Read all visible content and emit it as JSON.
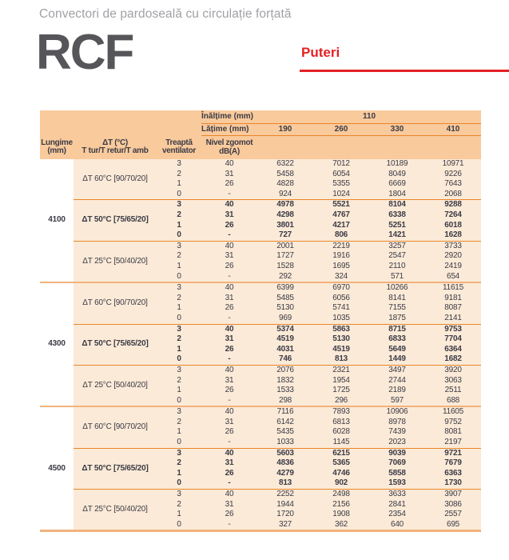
{
  "page": {
    "subtitle": "Convectori de pardoseală cu circulație forțată",
    "product_code": "RCF",
    "section_title": "Puteri"
  },
  "colors": {
    "accent_red": "#e32126",
    "header_bg": "#f9ca9c",
    "body_bg": "#fbead7",
    "strong_line": "#e8862a",
    "soft_line": "#f2b27c",
    "text_dark": "#3b3b46",
    "subtitle_gray": "#a0a1a5",
    "logo_gray": "#56565a"
  },
  "table": {
    "header": {
      "inaltime_label": "Înălțime (mm)",
      "inaltime_value": "110",
      "latime_label": "Lățime (mm)",
      "widths": [
        "190",
        "260",
        "330",
        "410"
      ],
      "col_lungime_l1": "Lungime",
      "col_lungime_l2": "(mm)",
      "col_dt_l1": "ΔT (°C)",
      "col_dt_l2": "T tur/T retur/T amb",
      "col_treapta_l1": "Treaptă",
      "col_treapta_l2": "ventilator",
      "col_nivel_l1": "Nivel zgomot",
      "col_nivel_l2": "dB(A)"
    },
    "groups": [
      {
        "lungime": "4100",
        "subgroups": [
          {
            "dt_label": "ΔT 60°C [90/70/20]",
            "bold": false,
            "rows": [
              {
                "treapta": "3",
                "db": "40",
                "values": [
                  "6322",
                  "7012",
                  "10189",
                  "10971"
                ]
              },
              {
                "treapta": "2",
                "db": "31",
                "values": [
                  "5458",
                  "6054",
                  "8049",
                  "9226"
                ]
              },
              {
                "treapta": "1",
                "db": "26",
                "values": [
                  "4828",
                  "5355",
                  "6669",
                  "7643"
                ]
              },
              {
                "treapta": "0",
                "db": "-",
                "values": [
                  "924",
                  "1024",
                  "1804",
                  "2068"
                ]
              }
            ]
          },
          {
            "dt_label": "ΔT 50°C [75/65/20]",
            "bold": true,
            "rows": [
              {
                "treapta": "3",
                "db": "40",
                "values": [
                  "4978",
                  "5521",
                  "8104",
                  "9288"
                ]
              },
              {
                "treapta": "2",
                "db": "31",
                "values": [
                  "4298",
                  "4767",
                  "6338",
                  "7264"
                ]
              },
              {
                "treapta": "1",
                "db": "26",
                "values": [
                  "3801",
                  "4217",
                  "5251",
                  "6018"
                ]
              },
              {
                "treapta": "0",
                "db": "-",
                "values": [
                  "727",
                  "806",
                  "1421",
                  "1628"
                ]
              }
            ]
          },
          {
            "dt_label": "ΔT 25°C [50/40/20]",
            "bold": false,
            "rows": [
              {
                "treapta": "3",
                "db": "40",
                "values": [
                  "2001",
                  "2219",
                  "3257",
                  "3733"
                ]
              },
              {
                "treapta": "2",
                "db": "31",
                "values": [
                  "1727",
                  "1916",
                  "2547",
                  "2920"
                ]
              },
              {
                "treapta": "1",
                "db": "26",
                "values": [
                  "1528",
                  "1695",
                  "2110",
                  "2419"
                ]
              },
              {
                "treapta": "0",
                "db": "-",
                "values": [
                  "292",
                  "324",
                  "571",
                  "654"
                ]
              }
            ]
          }
        ]
      },
      {
        "lungime": "4300",
        "subgroups": [
          {
            "dt_label": "ΔT 60°C [90/70/20]",
            "bold": false,
            "rows": [
              {
                "treapta": "3",
                "db": "40",
                "values": [
                  "6399",
                  "6970",
                  "10266",
                  "11615"
                ]
              },
              {
                "treapta": "2",
                "db": "31",
                "values": [
                  "5485",
                  "6056",
                  "8141",
                  "9181"
                ]
              },
              {
                "treapta": "1",
                "db": "26",
                "values": [
                  "5130",
                  "5741",
                  "7155",
                  "8087"
                ]
              },
              {
                "treapta": "0",
                "db": "-",
                "values": [
                  "969",
                  "1035",
                  "1875",
                  "2141"
                ]
              }
            ]
          },
          {
            "dt_label": "ΔT 50°C [75/65/20]",
            "bold": true,
            "rows": [
              {
                "treapta": "3",
                "db": "40",
                "values": [
                  "5374",
                  "5863",
                  "8715",
                  "9753"
                ]
              },
              {
                "treapta": "2",
                "db": "31",
                "values": [
                  "4519",
                  "5130",
                  "6833",
                  "7704"
                ]
              },
              {
                "treapta": "1",
                "db": "26",
                "values": [
                  "4031",
                  "4519",
                  "5649",
                  "6364"
                ]
              },
              {
                "treapta": "0",
                "db": "-",
                "values": [
                  "746",
                  "813",
                  "1449",
                  "1682"
                ]
              }
            ]
          },
          {
            "dt_label": "ΔT 25°C [50/40/20]",
            "bold": false,
            "rows": [
              {
                "treapta": "3",
                "db": "40",
                "values": [
                  "2076",
                  "2321",
                  "3497",
                  "3920"
                ]
              },
              {
                "treapta": "2",
                "db": "31",
                "values": [
                  "1832",
                  "1954",
                  "2744",
                  "3063"
                ]
              },
              {
                "treapta": "1",
                "db": "26",
                "values": [
                  "1533",
                  "1725",
                  "2189",
                  "2511"
                ]
              },
              {
                "treapta": "0",
                "db": "-",
                "values": [
                  "298",
                  "296",
                  "597",
                  "688"
                ]
              }
            ]
          }
        ]
      },
      {
        "lungime": "4500",
        "subgroups": [
          {
            "dt_label": "ΔT 60°C [90/70/20]",
            "bold": false,
            "rows": [
              {
                "treapta": "3",
                "db": "40",
                "values": [
                  "7116",
                  "7893",
                  "10906",
                  "11605"
                ]
              },
              {
                "treapta": "2",
                "db": "31",
                "values": [
                  "6142",
                  "6813",
                  "8978",
                  "9752"
                ]
              },
              {
                "treapta": "1",
                "db": "26",
                "values": [
                  "5435",
                  "6028",
                  "7439",
                  "8081"
                ]
              },
              {
                "treapta": "0",
                "db": "-",
                "values": [
                  "1033",
                  "1145",
                  "2023",
                  "2197"
                ]
              }
            ]
          },
          {
            "dt_label": "ΔT 50°C [75/65/20]",
            "bold": true,
            "rows": [
              {
                "treapta": "3",
                "db": "40",
                "values": [
                  "5603",
                  "6215",
                  "9039",
                  "9721"
                ]
              },
              {
                "treapta": "2",
                "db": "31",
                "values": [
                  "4836",
                  "5365",
                  "7069",
                  "7679"
                ]
              },
              {
                "treapta": "1",
                "db": "26",
                "values": [
                  "4279",
                  "4746",
                  "5858",
                  "6363"
                ]
              },
              {
                "treapta": "0",
                "db": "-",
                "values": [
                  "813",
                  "902",
                  "1593",
                  "1730"
                ]
              }
            ]
          },
          {
            "dt_label": "ΔT 25°C [50/40/20]",
            "bold": false,
            "rows": [
              {
                "treapta": "3",
                "db": "40",
                "values": [
                  "2252",
                  "2498",
                  "3633",
                  "3907"
                ]
              },
              {
                "treapta": "2",
                "db": "31",
                "values": [
                  "1944",
                  "2156",
                  "2841",
                  "3086"
                ]
              },
              {
                "treapta": "1",
                "db": "26",
                "values": [
                  "1720",
                  "1908",
                  "2354",
                  "2557"
                ]
              },
              {
                "treapta": "0",
                "db": "-",
                "values": [
                  "327",
                  "362",
                  "640",
                  "695"
                ]
              }
            ]
          }
        ]
      }
    ]
  }
}
